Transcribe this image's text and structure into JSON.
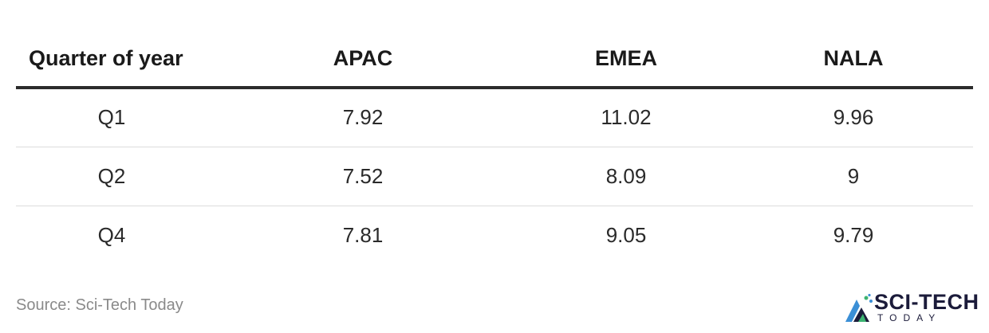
{
  "chart_data": {
    "type": "table",
    "columns": [
      "Quarter of year",
      "APAC",
      "EMEA",
      "NALA"
    ],
    "rows": [
      [
        "Q1",
        "7.92",
        "11.02",
        "9.96"
      ],
      [
        "Q2",
        "7.52",
        "8.09",
        "9"
      ],
      [
        "Q4",
        "7.81",
        "9.05",
        "9.79"
      ]
    ]
  },
  "source": "Source: Sci-Tech Today",
  "logo": {
    "text": "SCI-TECH",
    "subtext": "TODAY",
    "colors": {
      "mark_blue": "#3b8fd6",
      "mark_green": "#3cb371",
      "text": "#1b1b3a"
    }
  }
}
